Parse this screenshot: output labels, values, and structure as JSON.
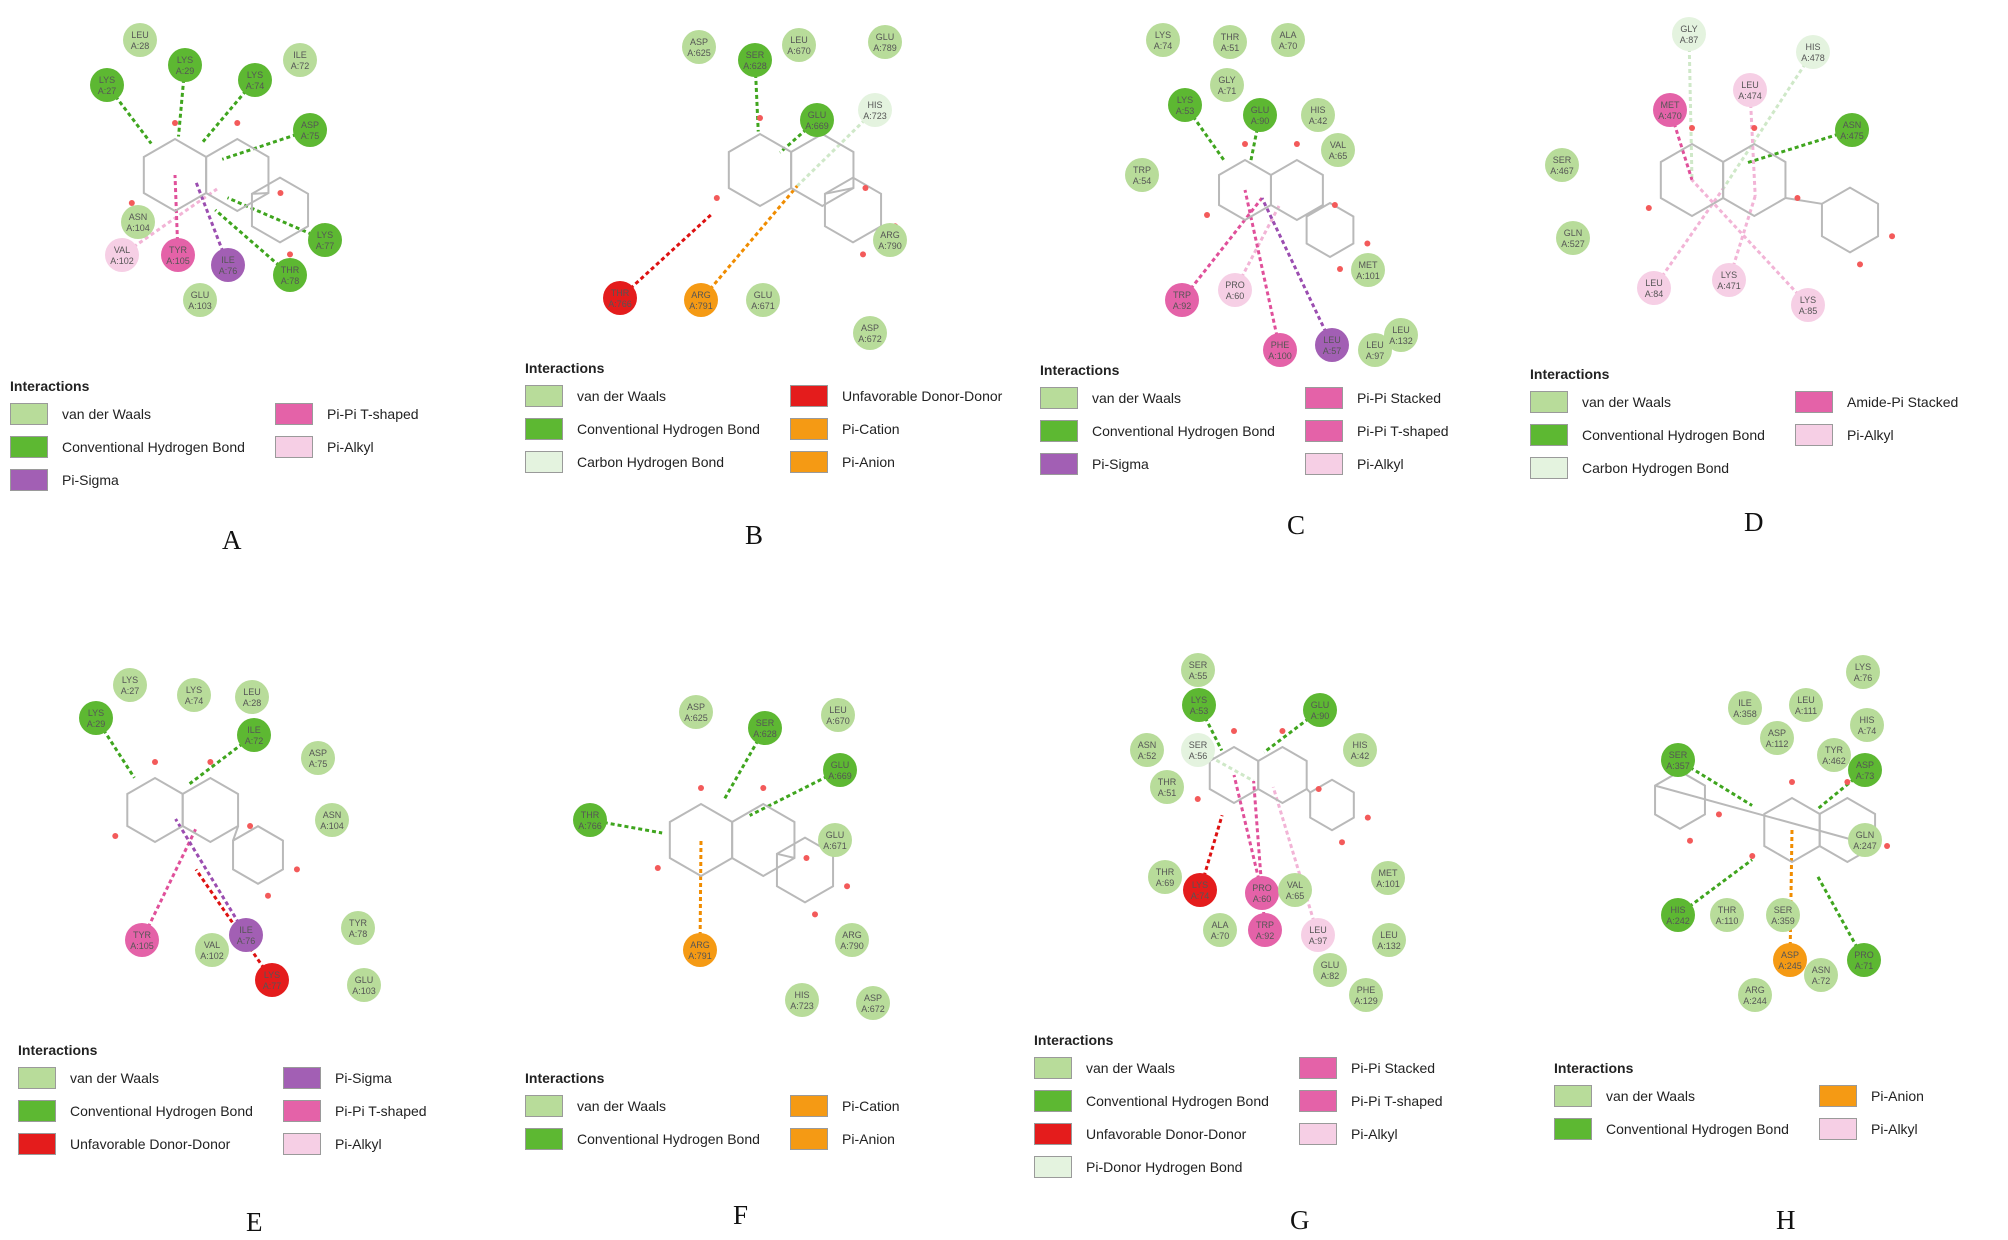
{
  "legend_title": "Interactions",
  "colors": {
    "van der Waals": "#b8dc9a",
    "Conventional Hydrogen Bond": "#5db832",
    "Carbon Hydrogen Bond": "#e4f3df",
    "Pi-Donor Hydrogen Bond": "#e4f3df",
    "Unfavorable Donor-Donor": "#e41c1c",
    "Pi-Cation": "#f59a14",
    "Pi-Anion": "#f59a14",
    "Pi-Sigma": "#a25fb4",
    "Pi-Pi T-shaped": "#e462a8",
    "Pi-Pi Stacked": "#e462a8",
    "Amide-Pi Stacked": "#e462a8",
    "Pi-Alkyl": "#f6cfe5"
  },
  "panels": [
    {
      "label": "A",
      "legend": [
        [
          "van der Waals",
          "Pi-Pi T-shaped"
        ],
        [
          "Conventional Hydrogen Bond",
          "Pi-Alkyl"
        ],
        [
          "Pi-Sigma",
          ""
        ]
      ],
      "residues": [
        {
          "name": "LEU",
          "id": "A:28",
          "type": "vdw"
        },
        {
          "name": "LYS",
          "id": "A:27",
          "type": "hbond"
        },
        {
          "name": "LYS",
          "id": "A:29",
          "type": "hbond"
        },
        {
          "name": "LYS",
          "id": "A:74",
          "type": "hbond"
        },
        {
          "name": "ILE",
          "id": "A:72",
          "type": "vdw"
        },
        {
          "name": "ASP",
          "id": "A:75",
          "type": "hbond"
        },
        {
          "name": "ASN",
          "id": "A:104",
          "type": "vdw"
        },
        {
          "name": "LYS",
          "id": "A:77",
          "type": "hbond"
        },
        {
          "name": "VAL",
          "id": "A:102",
          "type": "alkyl"
        },
        {
          "name": "TYR",
          "id": "A:105",
          "type": "pipi"
        },
        {
          "name": "ILE",
          "id": "A:76",
          "type": "sigma"
        },
        {
          "name": "THR",
          "id": "A:78",
          "type": "hbond"
        },
        {
          "name": "GLU",
          "id": "A:103",
          "type": "vdw"
        }
      ]
    },
    {
      "label": "B",
      "legend": [
        [
          "van der Waals",
          "Unfavorable Donor-Donor"
        ],
        [
          "Conventional Hydrogen Bond",
          "Pi-Cation"
        ],
        [
          "Carbon Hydrogen Bond",
          "Pi-Anion"
        ]
      ],
      "residues": [
        {
          "name": "ASP",
          "id": "A:625",
          "type": "vdw"
        },
        {
          "name": "SER",
          "id": "A:628",
          "type": "hbond"
        },
        {
          "name": "LEU",
          "id": "A:670",
          "type": "vdw"
        },
        {
          "name": "GLU",
          "id": "A:789",
          "type": "vdw"
        },
        {
          "name": "GLU",
          "id": "A:669",
          "type": "hbond"
        },
        {
          "name": "HIS",
          "id": "A:723",
          "type": "chbond"
        },
        {
          "name": "ARG",
          "id": "A:790",
          "type": "vdw"
        },
        {
          "name": "THR",
          "id": "A:766",
          "type": "unfav"
        },
        {
          "name": "ARG",
          "id": "A:791",
          "type": "cation"
        },
        {
          "name": "GLU",
          "id": "A:671",
          "type": "vdw"
        },
        {
          "name": "ASP",
          "id": "A:672",
          "type": "vdw"
        }
      ]
    },
    {
      "label": "C",
      "legend": [
        [
          "van der Waals",
          "Pi-Pi Stacked"
        ],
        [
          "Conventional Hydrogen Bond",
          "Pi-Pi T-shaped"
        ],
        [
          "Pi-Sigma",
          "Pi-Alkyl"
        ]
      ],
      "residues": [
        {
          "name": "LYS",
          "id": "A:74",
          "type": "vdw"
        },
        {
          "name": "THR",
          "id": "A:51",
          "type": "vdw"
        },
        {
          "name": "ALA",
          "id": "A:70",
          "type": "vdw"
        },
        {
          "name": "GLY",
          "id": "A:71",
          "type": "vdw"
        },
        {
          "name": "LYS",
          "id": "A:53",
          "type": "hbond"
        },
        {
          "name": "GLU",
          "id": "A:90",
          "type": "hbond"
        },
        {
          "name": "HIS",
          "id": "A:42",
          "type": "vdw"
        },
        {
          "name": "VAL",
          "id": "A:65",
          "type": "vdw"
        },
        {
          "name": "TRP",
          "id": "A:54",
          "type": "vdw"
        },
        {
          "name": "MET",
          "id": "A:101",
          "type": "vdw"
        },
        {
          "name": "TRP",
          "id": "A:92",
          "type": "pipi"
        },
        {
          "name": "PRO",
          "id": "A:60",
          "type": "alkyl"
        },
        {
          "name": "PHE",
          "id": "A:100",
          "type": "pipi"
        },
        {
          "name": "LEU",
          "id": "A:57",
          "type": "sigma"
        },
        {
          "name": "LEU",
          "id": "A:97",
          "type": "vdw"
        },
        {
          "name": "LEU",
          "id": "A:132",
          "type": "vdw"
        }
      ]
    },
    {
      "label": "D",
      "legend": [
        [
          "van der Waals",
          "Amide-Pi Stacked"
        ],
        [
          "Conventional Hydrogen Bond",
          "Pi-Alkyl"
        ],
        [
          "Carbon Hydrogen Bond",
          ""
        ]
      ],
      "residues": [
        {
          "name": "GLY",
          "id": "A:87",
          "type": "chbond"
        },
        {
          "name": "HIS",
          "id": "A:478",
          "type": "chbond"
        },
        {
          "name": "LEU",
          "id": "A:474",
          "type": "alkyl"
        },
        {
          "name": "MET",
          "id": "A:470",
          "type": "pipi"
        },
        {
          "name": "ASN",
          "id": "A:475",
          "type": "hbond"
        },
        {
          "name": "SER",
          "id": "A:467",
          "type": "vdw"
        },
        {
          "name": "GLN",
          "id": "A:527",
          "type": "vdw"
        },
        {
          "name": "LEU",
          "id": "A:84",
          "type": "alkyl"
        },
        {
          "name": "LYS",
          "id": "A:471",
          "type": "alkyl"
        },
        {
          "name": "LYS",
          "id": "A:85",
          "type": "alkyl"
        }
      ]
    },
    {
      "label": "E",
      "legend": [
        [
          "van der Waals",
          "Pi-Sigma"
        ],
        [
          "Conventional Hydrogen Bond",
          "Pi-Pi T-shaped"
        ],
        [
          "Unfavorable Donor-Donor",
          "Pi-Alkyl"
        ]
      ],
      "residues": [
        {
          "name": "LYS",
          "id": "A:27",
          "type": "vdw"
        },
        {
          "name": "LYS",
          "id": "A:74",
          "type": "vdw"
        },
        {
          "name": "LEU",
          "id": "A:28",
          "type": "vdw"
        },
        {
          "name": "LYS",
          "id": "A:29",
          "type": "hbond"
        },
        {
          "name": "ILE",
          "id": "A:72",
          "type": "hbond"
        },
        {
          "name": "ASP",
          "id": "A:75",
          "type": "vdw"
        },
        {
          "name": "ASN",
          "id": "A:104",
          "type": "vdw"
        },
        {
          "name": "TYR",
          "id": "A:78",
          "type": "vdw"
        },
        {
          "name": "TYR",
          "id": "A:105",
          "type": "pipi"
        },
        {
          "name": "VAL",
          "id": "A:102",
          "type": "vdw"
        },
        {
          "name": "ILE",
          "id": "A:76",
          "type": "sigma"
        },
        {
          "name": "LYS",
          "id": "A:77",
          "type": "unfav"
        },
        {
          "name": "GLU",
          "id": "A:103",
          "type": "vdw"
        }
      ]
    },
    {
      "label": "F",
      "legend": [
        [
          "van der Waals",
          "Pi-Cation"
        ],
        [
          "Conventional Hydrogen Bond",
          "Pi-Anion"
        ]
      ],
      "residues": [
        {
          "name": "ASP",
          "id": "A:625",
          "type": "vdw"
        },
        {
          "name": "SER",
          "id": "A:628",
          "type": "hbond"
        },
        {
          "name": "LEU",
          "id": "A:670",
          "type": "vdw"
        },
        {
          "name": "GLU",
          "id": "A:669",
          "type": "hbond"
        },
        {
          "name": "THR",
          "id": "A:766",
          "type": "hbond"
        },
        {
          "name": "GLU",
          "id": "A:671",
          "type": "vdw"
        },
        {
          "name": "ARG",
          "id": "A:791",
          "type": "cation"
        },
        {
          "name": "ARG",
          "id": "A:790",
          "type": "vdw"
        },
        {
          "name": "HIS",
          "id": "A:723",
          "type": "vdw"
        },
        {
          "name": "ASP",
          "id": "A:672",
          "type": "vdw"
        }
      ]
    },
    {
      "label": "G",
      "legend": [
        [
          "van der Waals",
          "Pi-Pi Stacked"
        ],
        [
          "Conventional Hydrogen Bond",
          "Pi-Pi T-shaped"
        ],
        [
          "Unfavorable Donor-Donor",
          "Pi-Alkyl"
        ],
        [
          "Pi-Donor Hydrogen Bond",
          ""
        ]
      ],
      "residues": [
        {
          "name": "SER",
          "id": "A:55",
          "type": "vdw"
        },
        {
          "name": "LYS",
          "id": "A:53",
          "type": "hbond"
        },
        {
          "name": "GLU",
          "id": "A:90",
          "type": "hbond"
        },
        {
          "name": "ASN",
          "id": "A:52",
          "type": "vdw"
        },
        {
          "name": "SER",
          "id": "A:56",
          "type": "chbond"
        },
        {
          "name": "HIS",
          "id": "A:42",
          "type": "vdw"
        },
        {
          "name": "THR",
          "id": "A:51",
          "type": "vdw"
        },
        {
          "name": "THR",
          "id": "A:69",
          "type": "vdw"
        },
        {
          "name": "LYS",
          "id": "A:74",
          "type": "unfav"
        },
        {
          "name": "PRO",
          "id": "A:60",
          "type": "pipi"
        },
        {
          "name": "VAL",
          "id": "A:65",
          "type": "vdw"
        },
        {
          "name": "MET",
          "id": "A:101",
          "type": "vdw"
        },
        {
          "name": "ALA",
          "id": "A:70",
          "type": "vdw"
        },
        {
          "name": "TRP",
          "id": "A:92",
          "type": "pipi"
        },
        {
          "name": "LEU",
          "id": "A:97",
          "type": "alkyl"
        },
        {
          "name": "LEU",
          "id": "A:132",
          "type": "vdw"
        },
        {
          "name": "GLU",
          "id": "A:82",
          "type": "vdw"
        },
        {
          "name": "PHE",
          "id": "A:129",
          "type": "vdw"
        }
      ]
    },
    {
      "label": "H",
      "legend": [
        [
          "van der Waals",
          "Pi-Anion"
        ],
        [
          "Conventional Hydrogen Bond",
          "Pi-Alkyl"
        ]
      ],
      "residues": [
        {
          "name": "LYS",
          "id": "A:76",
          "type": "vdw"
        },
        {
          "name": "ILE",
          "id": "A:358",
          "type": "vdw"
        },
        {
          "name": "LEU",
          "id": "A:111",
          "type": "vdw"
        },
        {
          "name": "HIS",
          "id": "A:74",
          "type": "vdw"
        },
        {
          "name": "ASP",
          "id": "A:112",
          "type": "vdw"
        },
        {
          "name": "TYR",
          "id": "A:462",
          "type": "vdw"
        },
        {
          "name": "SER",
          "id": "A:357",
          "type": "hbond"
        },
        {
          "name": "ASP",
          "id": "A:73",
          "type": "hbond"
        },
        {
          "name": "GLN",
          "id": "A:247",
          "type": "vdw"
        },
        {
          "name": "HIS",
          "id": "A:242",
          "type": "hbond"
        },
        {
          "name": "THR",
          "id": "A:110",
          "type": "vdw"
        },
        {
          "name": "SER",
          "id": "A:359",
          "type": "vdw"
        },
        {
          "name": "ASP",
          "id": "A:245",
          "type": "cation"
        },
        {
          "name": "PRO",
          "id": "A:71",
          "type": "hbond"
        },
        {
          "name": "ASN",
          "id": "A:72",
          "type": "vdw"
        },
        {
          "name": "ARG",
          "id": "A:244",
          "type": "vdw"
        }
      ]
    }
  ]
}
